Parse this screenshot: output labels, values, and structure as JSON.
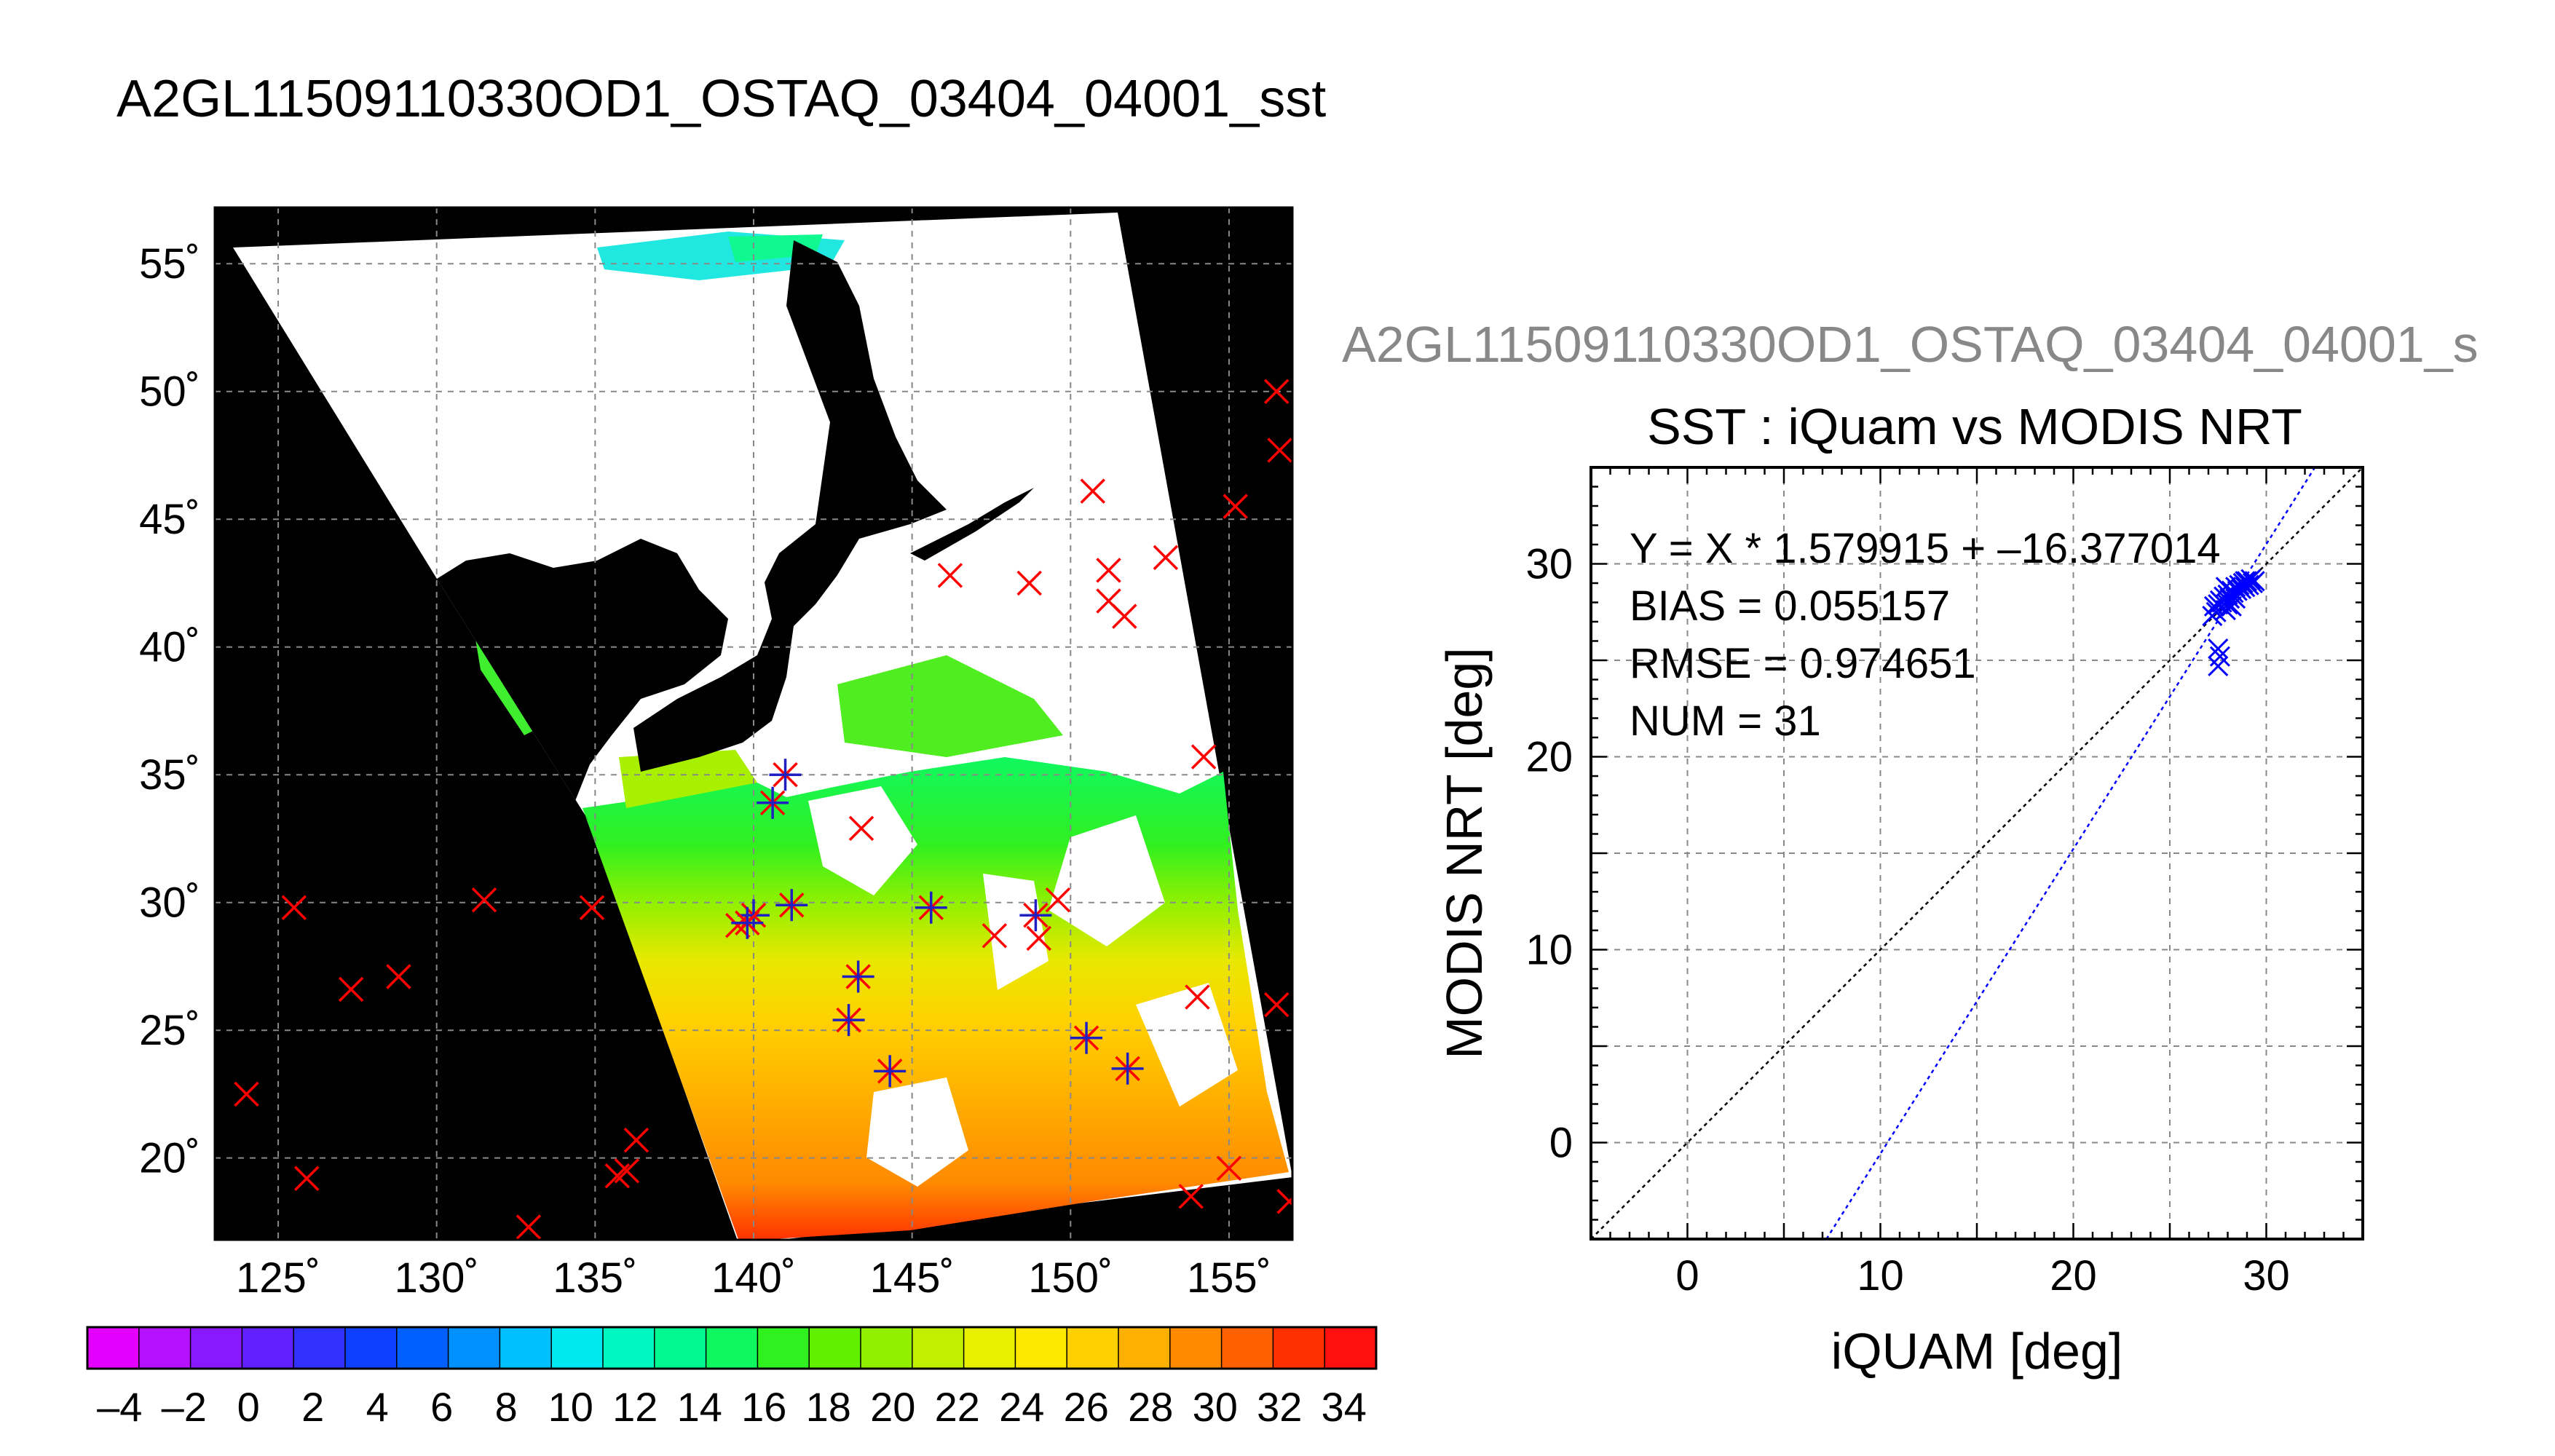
{
  "main_title": "A2GL11509110330OD1_OSTAQ_03404_04001_sst",
  "map": {
    "lon_ticks": [
      "125˚",
      "130˚",
      "135˚",
      "140˚",
      "145˚",
      "150˚",
      "155˚"
    ],
    "lat_ticks": [
      "55˚",
      "50˚",
      "45˚",
      "40˚",
      "35˚",
      "30˚",
      "25˚",
      "20˚"
    ],
    "lon_range": [
      123,
      157
    ],
    "lat_range": [
      16.8,
      57.2
    ],
    "background_color": "#000000",
    "cloud_color": "#ffffff",
    "land_color": "#000000",
    "iquam_marker_color": "#ff0000",
    "matchup_marker_color": "#2020c0",
    "iquam_points": [
      [
        124.0,
        22.5
      ],
      [
        125.5,
        29.8
      ],
      [
        127.3,
        26.6
      ],
      [
        128.8,
        27.1
      ],
      [
        131.5,
        30.1
      ],
      [
        134.9,
        29.8
      ],
      [
        136.3,
        20.7
      ],
      [
        136.0,
        19.5
      ],
      [
        135.7,
        19.3
      ],
      [
        125.9,
        19.2
      ],
      [
        132.9,
        17.3
      ],
      [
        143.4,
        32.9
      ],
      [
        146.2,
        42.8
      ],
      [
        148.7,
        42.5
      ],
      [
        150.7,
        46.1
      ],
      [
        151.2,
        43.0
      ],
      [
        151.2,
        41.8
      ],
      [
        151.7,
        41.2
      ],
      [
        153.0,
        43.5
      ],
      [
        155.2,
        45.5
      ],
      [
        156.5,
        50.0
      ],
      [
        156.6,
        47.7
      ],
      [
        154.2,
        35.7
      ],
      [
        147.6,
        28.7
      ],
      [
        149.0,
        28.6
      ],
      [
        149.6,
        30.1
      ],
      [
        154.0,
        26.3
      ],
      [
        156.5,
        26.0
      ],
      [
        155.0,
        19.6
      ],
      [
        153.8,
        18.5
      ],
      [
        156.9,
        18.3
      ],
      [
        139.5,
        29.1
      ]
    ],
    "matchup_points": [
      [
        141.0,
        35.0
      ],
      [
        140.6,
        33.9
      ],
      [
        140.0,
        29.5
      ],
      [
        139.8,
        29.2
      ],
      [
        141.2,
        29.9
      ],
      [
        143.3,
        27.1
      ],
      [
        143.0,
        25.4
      ],
      [
        144.3,
        23.4
      ],
      [
        145.6,
        29.8
      ],
      [
        148.9,
        29.5
      ],
      [
        150.5,
        24.7
      ],
      [
        151.8,
        23.5
      ]
    ]
  },
  "colorbar": {
    "labels": [
      "–4",
      "–2",
      "0",
      "2",
      "4",
      "6",
      "8",
      "10",
      "12",
      "14",
      "16",
      "18",
      "20",
      "22",
      "24",
      "26",
      "28",
      "30",
      "32",
      "34"
    ],
    "range": [
      -5,
      35
    ],
    "colors": [
      "#e400ff",
      "#b510ff",
      "#8a18ff",
      "#6020ff",
      "#3030ff",
      "#1040ff",
      "#0060ff",
      "#0090ff",
      "#00c0ff",
      "#00e8f0",
      "#00f8c0",
      "#00f890",
      "#10f860",
      "#30f020",
      "#60f000",
      "#90f000",
      "#c0f000",
      "#e8f000",
      "#ffe800",
      "#ffd000",
      "#ffb000",
      "#ff8a00",
      "#ff6000",
      "#ff3000",
      "#ff1010"
    ]
  },
  "scatter": {
    "filename_label": "A2GL11509110330OD1_OSTAQ_03404_04001_s",
    "stats": [
      "Y = X * 1.579915 + –16.377014",
      "BIAS = 0.055157",
      "RMSE = 0.974651",
      "NUM = 31"
    ]
  },
  "chart_data": {
    "type": "scatter",
    "title": "SST : iQuam vs MODIS NRT",
    "xlabel": "iQUAM [deg]",
    "ylabel": "MODIS NRT [deg]",
    "xlim": [
      -5,
      35
    ],
    "ylim": [
      -5,
      35
    ],
    "x_ticks": [
      0,
      10,
      20,
      30
    ],
    "y_ticks": [
      0,
      10,
      20,
      30
    ],
    "grid": true,
    "regression": {
      "slope": 1.579915,
      "intercept": -16.377014,
      "color": "#0000ff"
    },
    "identity_line_color": "#000000",
    "marker_color": "#0000ff",
    "points": [
      [
        27.2,
        27.3
      ],
      [
        27.3,
        27.8
      ],
      [
        27.4,
        27.5
      ],
      [
        27.5,
        27.9
      ],
      [
        27.6,
        28.1
      ],
      [
        27.7,
        28.0
      ],
      [
        27.8,
        28.3
      ],
      [
        27.9,
        27.6
      ],
      [
        28.0,
        28.4
      ],
      [
        28.1,
        28.2
      ],
      [
        28.2,
        28.6
      ],
      [
        28.3,
        28.5
      ],
      [
        28.4,
        28.8
      ],
      [
        28.5,
        28.6
      ],
      [
        28.6,
        28.9
      ],
      [
        28.7,
        28.7
      ],
      [
        28.8,
        29.0
      ],
      [
        28.9,
        28.8
      ],
      [
        29.0,
        29.1
      ],
      [
        29.1,
        28.9
      ],
      [
        29.2,
        29.2
      ],
      [
        29.3,
        29.0
      ],
      [
        29.4,
        29.1
      ],
      [
        28.0,
        27.9
      ],
      [
        28.4,
        28.2
      ],
      [
        27.9,
        28.8
      ],
      [
        28.2,
        27.8
      ],
      [
        27.5,
        25.6
      ],
      [
        27.5,
        24.7
      ],
      [
        27.6,
        25.2
      ],
      [
        28.9,
        29.1
      ]
    ]
  }
}
